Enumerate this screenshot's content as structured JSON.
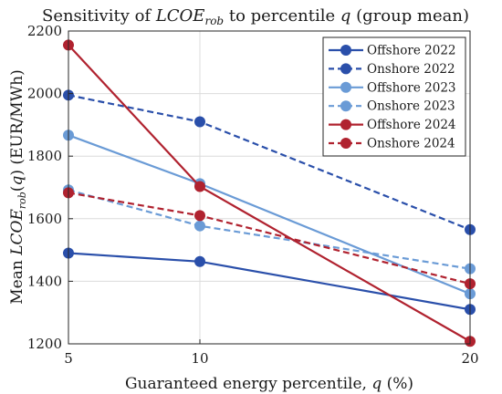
{
  "chart_data": {
    "type": "line",
    "title": "Sensitivity of LCOE_rob to percentile q (group mean)",
    "title_parts": {
      "prefix": "Sensitivity of ",
      "symbol": "LCOE",
      "subscript": "rob",
      "suffix": " to percentile ",
      "var": "q",
      "tail": " (group mean)"
    },
    "xlabel": "Guaranteed energy percentile, q (%)",
    "xlabel_parts": {
      "prefix": "Guaranteed energy percentile, ",
      "var": "q",
      "suffix": " (%)"
    },
    "ylabel": "Mean LCOE_rob(q) (EUR/MWh)",
    "ylabel_parts": {
      "prefix": "Mean ",
      "symbol": "LCOE",
      "subscript": "rob",
      "open": "(",
      "var": "q",
      "close": ")",
      "unit": "  (EUR/MWh)"
    },
    "x": [
      5,
      10,
      20
    ],
    "xticks": [
      "5",
      "10",
      "20"
    ],
    "yticks": [
      "1200",
      "1400",
      "1600",
      "1800",
      "2000",
      "2200"
    ],
    "ylim": [
      1200,
      2200
    ],
    "grid": true,
    "legend_position": "top-right",
    "series": [
      {
        "name": "Offshore 2022",
        "values": [
          1490,
          1463,
          1310
        ],
        "color": "#2a4faa",
        "dash": "solid"
      },
      {
        "name": "Onshore 2022",
        "values": [
          1995,
          1910,
          1565
        ],
        "color": "#2a4faa",
        "dash": "dashed"
      },
      {
        "name": "Offshore 2023",
        "values": [
          1867,
          1712,
          1360
        ],
        "color": "#6a9bd6",
        "dash": "solid"
      },
      {
        "name": "Onshore 2023",
        "values": [
          1692,
          1577,
          1440
        ],
        "color": "#6a9bd6",
        "dash": "dashed"
      },
      {
        "name": "Offshore 2024",
        "values": [
          2155,
          1703,
          1208
        ],
        "color": "#b0222f",
        "dash": "solid"
      },
      {
        "name": "Onshore 2024",
        "values": [
          1683,
          1610,
          1392
        ],
        "color": "#b0222f",
        "dash": "dashed"
      }
    ]
  }
}
